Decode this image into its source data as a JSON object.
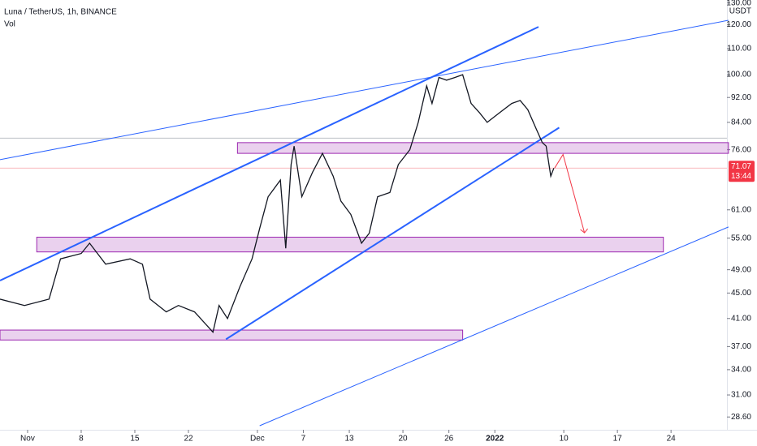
{
  "chart_data": {
    "type": "line",
    "title": "Luna / TetherUS, 1h, BINANCE",
    "volume_label": "Vol",
    "currency": "USDT",
    "log_scale": true,
    "ylim": [
      27.7,
      131.4
    ],
    "yticks": [
      {
        "value": 28.6,
        "label": "28.60"
      },
      {
        "value": 31,
        "label": "31.00"
      },
      {
        "value": 34,
        "label": "34.00"
      },
      {
        "value": 37,
        "label": "37.00"
      },
      {
        "value": 41,
        "label": "41.00"
      },
      {
        "value": 45,
        "label": "45.00"
      },
      {
        "value": 49,
        "label": "49.00"
      },
      {
        "value": 55,
        "label": "55.00"
      },
      {
        "value": 61,
        "label": "61.00"
      },
      {
        "value": 76,
        "label": "76.00"
      },
      {
        "value": 84,
        "label": "84.00"
      },
      {
        "value": 92,
        "label": "92.00"
      },
      {
        "value": 100,
        "label": "100.00"
      },
      {
        "value": 110,
        "label": "110.00"
      },
      {
        "value": 120,
        "label": "120.00"
      },
      {
        "value": 130,
        "label": "130.00"
      }
    ],
    "xlim": [
      -3.6,
      91.3
    ],
    "xticks": [
      {
        "value": 0,
        "label": "Nov"
      },
      {
        "value": 7,
        "label": "8"
      },
      {
        "value": 14,
        "label": "15"
      },
      {
        "value": 21,
        "label": "22"
      },
      {
        "value": 30,
        "label": "Dec"
      },
      {
        "value": 36,
        "label": "7"
      },
      {
        "value": 42,
        "label": "13"
      },
      {
        "value": 49,
        "label": "20"
      },
      {
        "value": 55,
        "label": "26"
      },
      {
        "value": 61,
        "label": "2022"
      },
      {
        "value": 70,
        "label": "10"
      },
      {
        "value": 77,
        "label": "17"
      },
      {
        "value": 84,
        "label": "24"
      }
    ],
    "series": [
      {
        "name": "Luna / TetherUS",
        "color": "#131722",
        "x": [
          -3.6,
          -0.4,
          2.8,
          4.3,
          7,
          8.1,
          10.2,
          13.4,
          15,
          16,
          18.1,
          19.7,
          21.8,
          24.2,
          25,
          26.1,
          27.7,
          29.3,
          30.3,
          31.4,
          33,
          33.7,
          34.4,
          34.8,
          35.8,
          37.2,
          38.5,
          39.9,
          40.9,
          42.2,
          43.6,
          44.6,
          45.7,
          47.3,
          48.4,
          49.9,
          51,
          52.1,
          52.8,
          53.7,
          54.7,
          55.8,
          56.8,
          57.9,
          59,
          60,
          61.6,
          63.2,
          64.3,
          65.3,
          66.4,
          67.2,
          67.7,
          68.3,
          68.7
        ],
        "values": [
          44,
          43,
          44,
          51,
          52,
          54,
          50,
          51,
          50,
          44,
          42,
          43,
          42,
          39,
          43,
          41,
          46,
          51,
          57,
          64,
          68,
          53,
          72,
          77,
          64,
          70,
          75,
          69,
          63,
          60,
          54,
          56,
          64,
          65,
          72,
          76,
          84,
          96,
          90,
          99,
          98,
          99,
          100,
          90,
          87,
          84,
          87,
          90,
          91,
          88,
          82,
          78,
          77,
          69,
          71.07
        ]
      }
    ],
    "last_price": 71.07,
    "countdown": "13:44",
    "zones": [
      {
        "from": 27.4,
        "to": 91.5,
        "low": 75,
        "high": 78
      },
      {
        "from": 1.2,
        "to": 83,
        "low": 52.3,
        "high": 55.2
      },
      {
        "from": -3.6,
        "to": 56.8,
        "low": 37.9,
        "high": 39.3
      }
    ],
    "trendlines": [
      {
        "x": [
          -3.6,
          66.7
        ],
        "y": [
          47.1,
          119.1
        ],
        "color": "#2962ff",
        "width": 2
      },
      {
        "x": [
          25.9,
          69.4
        ],
        "y": [
          38,
          82.4
        ],
        "color": "#2962ff",
        "width": 2
      },
      {
        "x": [
          -3.6,
          91.5
        ],
        "y": [
          73.3,
          122
        ],
        "color": "#2962ff",
        "width": 1
      },
      {
        "x": [
          30.3,
          91.5
        ],
        "y": [
          27.7,
          57.3
        ],
        "color": "#2962ff",
        "width": 1
      }
    ],
    "hline": 79.3,
    "arrow": {
      "x": [
        68.8,
        69.9,
        72.7
      ],
      "y": [
        71.07,
        74.7,
        56.1
      ],
      "color": "#f23645"
    }
  }
}
